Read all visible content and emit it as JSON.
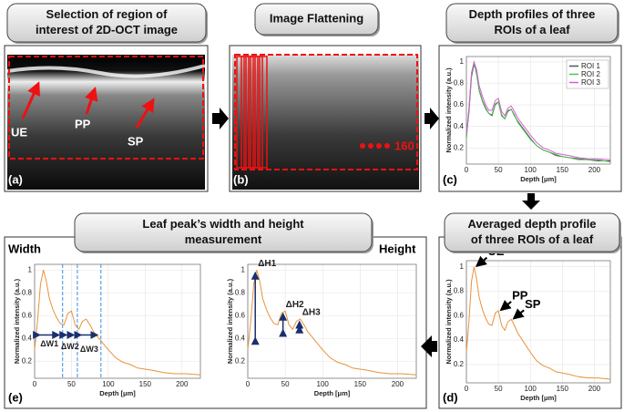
{
  "panels": {
    "a": {
      "title": [
        "Selection of region of",
        "interest of 2D-OCT image"
      ],
      "label": "(a)",
      "annotations": [
        "UE",
        "PP",
        "SP"
      ]
    },
    "b": {
      "title": [
        "Image Flattening"
      ],
      "label": "(b)",
      "count_label": "160"
    },
    "c": {
      "title": [
        "Depth profiles of three",
        "ROIs of a leaf"
      ],
      "label": "(c)",
      "chart": {
        "type": "line",
        "xlabel": "Depth [μm]",
        "ylabel": "Normalized intensity (a.u.)",
        "xlim": [
          0,
          225
        ],
        "ylim": [
          0.05,
          1.05
        ],
        "xticks": [
          0,
          50,
          100,
          150,
          200
        ],
        "yticks": [
          0.2,
          0.4,
          0.6,
          0.8,
          1
        ],
        "grid": true,
        "legend": "upper right",
        "x": [
          0,
          4,
          8,
          12,
          16,
          20,
          25,
          30,
          35,
          40,
          45,
          50,
          55,
          60,
          65,
          70,
          75,
          80,
          90,
          100,
          110,
          120,
          130,
          140,
          150,
          160,
          175,
          190,
          205,
          225
        ],
        "series": [
          {
            "name": "ROI 1",
            "color": "#555555",
            "values": [
              0.3,
              0.53,
              0.86,
              0.98,
              0.9,
              0.74,
              0.64,
              0.57,
              0.52,
              0.5,
              0.6,
              0.63,
              0.5,
              0.47,
              0.54,
              0.56,
              0.5,
              0.45,
              0.37,
              0.29,
              0.22,
              0.18,
              0.16,
              0.13,
              0.12,
              0.11,
              0.1,
              0.09,
              0.08,
              0.08
            ]
          },
          {
            "name": "ROI 2",
            "color": "#4fc24f",
            "values": [
              0.28,
              0.56,
              0.88,
              1.0,
              0.88,
              0.73,
              0.63,
              0.56,
              0.52,
              0.51,
              0.61,
              0.63,
              0.51,
              0.47,
              0.55,
              0.56,
              0.51,
              0.44,
              0.36,
              0.28,
              0.22,
              0.18,
              0.16,
              0.14,
              0.12,
              0.11,
              0.09,
              0.09,
              0.09,
              0.07
            ]
          },
          {
            "name": "ROI 3",
            "color": "#d65ed6",
            "values": [
              0.32,
              0.57,
              0.9,
              1.0,
              0.93,
              0.78,
              0.68,
              0.6,
              0.55,
              0.55,
              0.64,
              0.66,
              0.54,
              0.5,
              0.57,
              0.59,
              0.54,
              0.48,
              0.4,
              0.32,
              0.25,
              0.2,
              0.18,
              0.15,
              0.14,
              0.13,
              0.11,
              0.1,
              0.1,
              0.09
            ]
          }
        ]
      }
    },
    "d": {
      "title": [
        "Averaged depth profile",
        "of three ROIs of a leaf"
      ],
      "label": "(d)",
      "chart": {
        "type": "line",
        "xlabel": "Depth [μm]",
        "ylabel": "Normalized intensity (a.u.)",
        "xlim": [
          0,
          225
        ],
        "ylim": [
          0.05,
          1.05
        ],
        "xticks": [
          0,
          50,
          100,
          150,
          200
        ],
        "yticks": [
          0.2,
          0.4,
          0.6,
          0.8,
          1
        ],
        "grid": true,
        "x": [
          0,
          4,
          8,
          12,
          16,
          20,
          25,
          30,
          35,
          40,
          45,
          50,
          55,
          60,
          65,
          70,
          75,
          80,
          90,
          100,
          110,
          120,
          130,
          140,
          150,
          160,
          175,
          190,
          205,
          225
        ],
        "series": [
          {
            "color": "#e8923a",
            "values": [
              0.3,
              0.55,
              0.88,
              1.0,
              0.9,
              0.75,
              0.65,
              0.58,
              0.53,
              0.52,
              0.62,
              0.64,
              0.52,
              0.48,
              0.55,
              0.57,
              0.52,
              0.46,
              0.38,
              0.3,
              0.23,
              0.19,
              0.17,
              0.14,
              0.13,
              0.12,
              0.1,
              0.09,
              0.09,
              0.08
            ]
          }
        ],
        "peaks": [
          {
            "label": "UE",
            "x": 12,
            "y": 1.0
          },
          {
            "label": "PP",
            "x": 50,
            "y": 0.64
          },
          {
            "label": "SP",
            "x": 70,
            "y": 0.57
          }
        ]
      }
    },
    "e": {
      "title": [
        "Leaf peak’s width and height",
        "measurement"
      ],
      "label": "(e)",
      "width_title": "Width",
      "height_title": "Height",
      "width_chart": {
        "type": "line",
        "xlabel": "Depth [μm]",
        "ylabel": "Normalized intensity (a.u.)",
        "xlim": [
          0,
          225
        ],
        "ylim": [
          0.05,
          1.05
        ],
        "xticks": [
          0,
          50,
          100,
          150,
          200
        ],
        "yticks": [
          0.2,
          0.4,
          0.6,
          0.8,
          1
        ],
        "grid": true,
        "x": [
          0,
          4,
          8,
          12,
          16,
          20,
          25,
          30,
          35,
          40,
          45,
          50,
          55,
          60,
          65,
          70,
          75,
          80,
          90,
          100,
          110,
          120,
          130,
          140,
          150,
          160,
          175,
          190,
          205,
          225
        ],
        "series": [
          {
            "color": "#e8923a",
            "values": [
              0.3,
              0.55,
              0.88,
              1.0,
              0.9,
              0.75,
              0.65,
              0.58,
              0.53,
              0.52,
              0.62,
              0.64,
              0.52,
              0.48,
              0.55,
              0.57,
              0.52,
              0.46,
              0.38,
              0.3,
              0.23,
              0.19,
              0.17,
              0.14,
              0.13,
              0.12,
              0.1,
              0.09,
              0.09,
              0.08
            ]
          }
        ],
        "wspans": [
          {
            "label": "ΔW1",
            "from": 2,
            "to": 38,
            "y": 0.43
          },
          {
            "label": "ΔW2",
            "from": 38,
            "to": 58,
            "y": 0.43
          },
          {
            "label": "ΔW3",
            "from": 58,
            "to": 90,
            "y": 0.43
          }
        ]
      },
      "height_chart": {
        "type": "line",
        "xlabel": "Depth [μm]",
        "ylabel": "Normalized intensity (a.u.)",
        "xlim": [
          0,
          225
        ],
        "ylim": [
          0.05,
          1.05
        ],
        "xticks": [
          0,
          50,
          100,
          150,
          200
        ],
        "yticks": [
          0.2,
          0.4,
          0.6,
          0.8,
          1
        ],
        "grid": true,
        "x": [
          0,
          4,
          8,
          12,
          16,
          20,
          25,
          30,
          35,
          40,
          45,
          50,
          55,
          60,
          65,
          70,
          75,
          80,
          90,
          100,
          110,
          120,
          130,
          140,
          150,
          160,
          175,
          190,
          205,
          225
        ],
        "series": [
          {
            "color": "#e8923a",
            "values": [
              0.3,
              0.55,
              0.88,
              1.0,
              0.9,
              0.75,
              0.65,
              0.58,
              0.53,
              0.52,
              0.62,
              0.64,
              0.52,
              0.48,
              0.55,
              0.57,
              0.52,
              0.46,
              0.38,
              0.3,
              0.23,
              0.19,
              0.17,
              0.14,
              0.13,
              0.12,
              0.1,
              0.09,
              0.09,
              0.08
            ]
          }
        ],
        "hspans": [
          {
            "label": "ΔH1",
            "x": 10,
            "from": 0.38,
            "to": 1.0
          },
          {
            "label": "ΔH2",
            "x": 47,
            "from": 0.45,
            "to": 0.64
          },
          {
            "label": "ΔH3",
            "x": 69,
            "from": 0.48,
            "to": 0.57
          }
        ]
      }
    }
  }
}
